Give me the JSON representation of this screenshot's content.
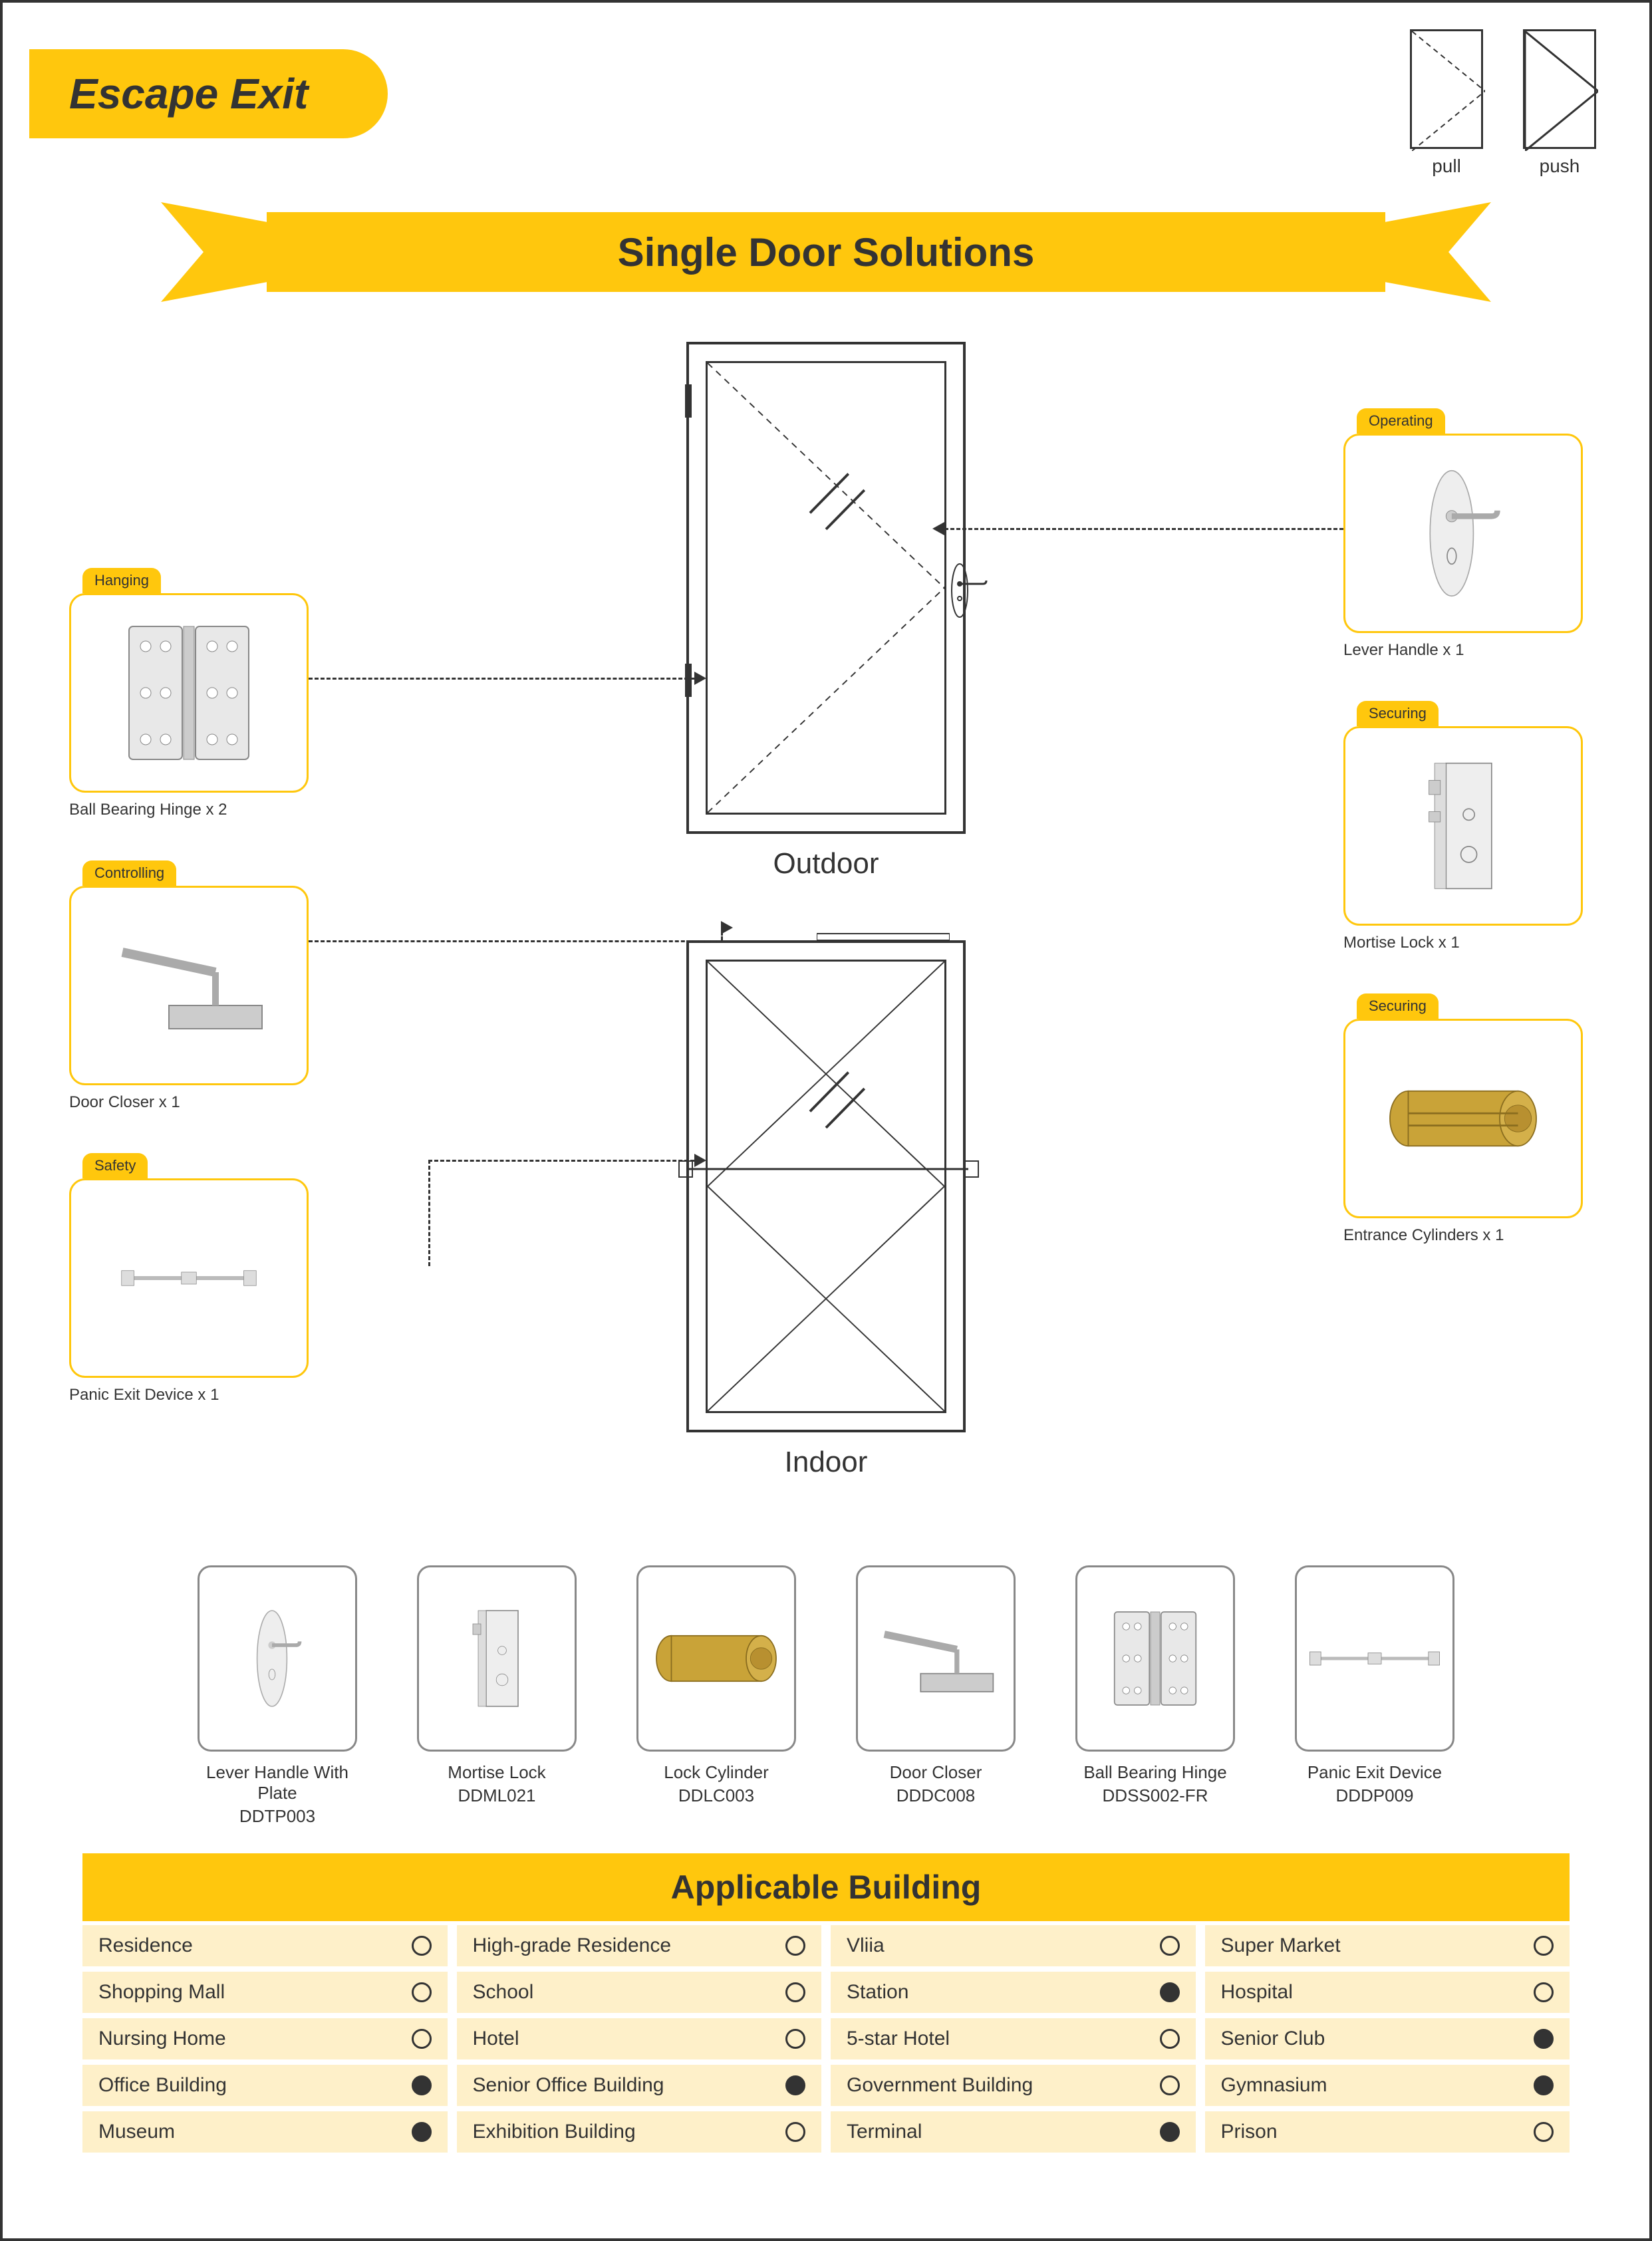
{
  "page_title": "Escape Exit",
  "banner_title": "Single Door Solutions",
  "pullpush": {
    "pull": "pull",
    "push": "push"
  },
  "doors": {
    "outdoor": "Outdoor",
    "indoor": "Indoor"
  },
  "colors": {
    "accent": "#ffc70d",
    "light": "#fef0c9",
    "text": "#333333"
  },
  "cards": {
    "hanging": {
      "tag": "Hanging",
      "caption": "Ball Bearing Hinge x 2"
    },
    "controlling": {
      "tag": "Controlling",
      "caption": "Door Closer x 1"
    },
    "safety": {
      "tag": "Safety",
      "caption": "Panic Exit Device x 1"
    },
    "operating": {
      "tag": "Operating",
      "caption": "Lever Handle x 1"
    },
    "securing1": {
      "tag": "Securing",
      "caption": "Mortise Lock x 1"
    },
    "securing2": {
      "tag": "Securing",
      "caption": "Entrance Cylinders x 1"
    }
  },
  "thumbs": [
    {
      "name": "Lever Handle With Plate",
      "code": "DDTP003"
    },
    {
      "name": "Mortise Lock",
      "code": "DDML021"
    },
    {
      "name": "Lock Cylinder",
      "code": "DDLC003"
    },
    {
      "name": "Door Closer",
      "code": "DDDC008"
    },
    {
      "name": "Ball Bearing Hinge",
      "code": "DDSS002-FR"
    },
    {
      "name": "Panic Exit Device",
      "code": "DDDP009"
    }
  ],
  "buildings_title": "Applicable Building",
  "buildings": [
    [
      {
        "l": "Residence",
        "f": false
      },
      {
        "l": "High-grade Residence",
        "f": false
      },
      {
        "l": "Vliia",
        "f": false
      },
      {
        "l": "Super Market",
        "f": false
      }
    ],
    [
      {
        "l": "Shopping Mall",
        "f": false
      },
      {
        "l": "School",
        "f": false
      },
      {
        "l": "Station",
        "f": true
      },
      {
        "l": "Hospital",
        "f": false
      }
    ],
    [
      {
        "l": "Nursing Home",
        "f": false
      },
      {
        "l": "Hotel",
        "f": false
      },
      {
        "l": "5-star Hotel",
        "f": false
      },
      {
        "l": "Senior Club",
        "f": true
      }
    ],
    [
      {
        "l": "Office Building",
        "f": true
      },
      {
        "l": "Senior Office Building",
        "f": true
      },
      {
        "l": "Government Building",
        "f": false
      },
      {
        "l": "Gymnasium",
        "f": true
      }
    ],
    [
      {
        "l": "Museum",
        "f": true
      },
      {
        "l": "Exhibition Building",
        "f": false
      },
      {
        "l": "Terminal",
        "f": true
      },
      {
        "l": "Prison",
        "f": false
      }
    ]
  ]
}
